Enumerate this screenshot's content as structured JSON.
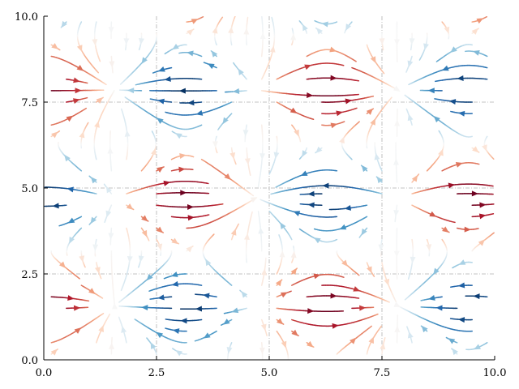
{
  "chart_data": {
    "type": "streamplot",
    "title": "",
    "xlabel": "",
    "ylabel": "",
    "xlim": [
      0,
      10
    ],
    "ylim": [
      0,
      10
    ],
    "grid": true,
    "colormap": "RdBu",
    "colormap_stops": [
      "#67001f",
      "#b2182b",
      "#d6604d",
      "#f4a582",
      "#fddbc7",
      "#f7f7f7",
      "#d1e5f0",
      "#92c5de",
      "#4393c3",
      "#2166ac",
      "#053061"
    ],
    "field": {
      "u": "cos(x) * sin(y)",
      "v": "sin(x) * cos(y)",
      "color_by": "u"
    },
    "x_ticks": [
      "0.0",
      "2.5",
      "5.0",
      "7.5",
      "10.0"
    ],
    "y_ticks": [
      "0.0",
      "2.5",
      "5.0",
      "7.5",
      "10.0"
    ]
  }
}
